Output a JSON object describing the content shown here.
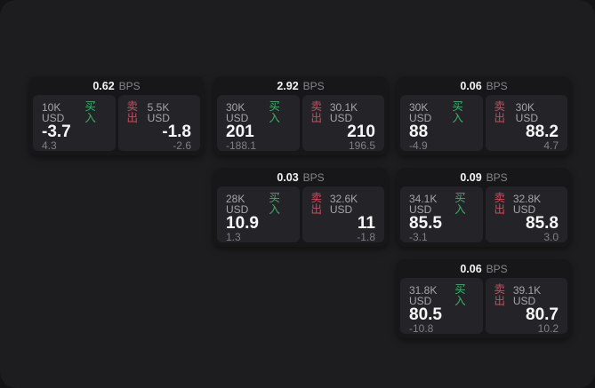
{
  "labels": {
    "bps": "BPS",
    "buy": "买入",
    "sell": "卖出"
  },
  "colors": {
    "page_background": "#141416",
    "window_background": "#1d1d1f",
    "card_background": "#17171a",
    "tile_background": "#242428",
    "buy_green": "#3fab6c",
    "sell_red": "#cb4a5c"
  },
  "cards": [
    {
      "spread": "0.62",
      "buy": {
        "size": "10K USD",
        "price": "-3.7",
        "delta": "4.3"
      },
      "sell": {
        "size": "5.5K USD",
        "price": "-1.8",
        "delta": "-2.6"
      }
    },
    {
      "spread": "2.92",
      "buy": {
        "size": "30K USD",
        "price": "201",
        "delta": "-188.1"
      },
      "sell": {
        "size": "30.1K USD",
        "price": "210",
        "delta": "196.5"
      }
    },
    {
      "spread": "0.06",
      "buy": {
        "size": "30K USD",
        "price": "88",
        "delta": "-4.9"
      },
      "sell": {
        "size": "30K USD",
        "price": "88.2",
        "delta": "4.7"
      }
    },
    {
      "spread": "0.03",
      "buy": {
        "size": "28K USD",
        "price": "10.9",
        "delta": "1.3"
      },
      "sell": {
        "size": "32.6K USD",
        "price": "11",
        "delta": "-1.8"
      }
    },
    {
      "spread": "0.09",
      "buy": {
        "size": "34.1K USD",
        "price": "85.5",
        "delta": "-3.1"
      },
      "sell": {
        "size": "32.8K USD",
        "price": "85.8",
        "delta": "3.0"
      }
    },
    {
      "spread": "0.06",
      "buy": {
        "size": "31.8K USD",
        "price": "80.5",
        "delta": "-10.8"
      },
      "sell": {
        "size": "39.1K USD",
        "price": "80.7",
        "delta": "10.2"
      }
    }
  ]
}
